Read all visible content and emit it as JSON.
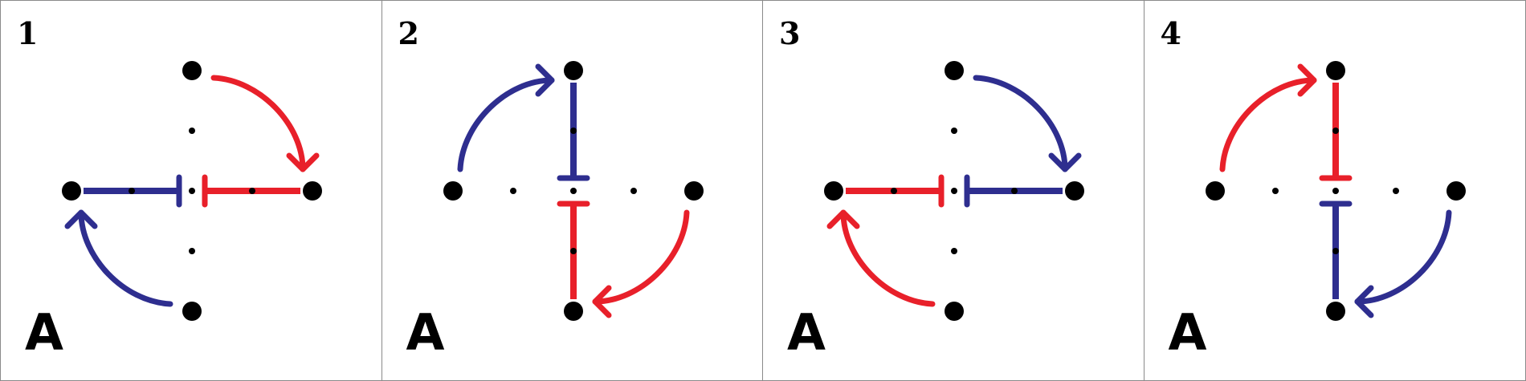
{
  "colors": {
    "blue": "#2e2e8f",
    "red": "#e8202a",
    "node": "#000000",
    "border": "#8a8a8a"
  },
  "panels": [
    {
      "number": "1",
      "letter": "A",
      "bars": [
        {
          "dir": "left",
          "color": "blue"
        },
        {
          "dir": "right",
          "color": "red"
        }
      ],
      "arrows": [
        {
          "quadrant": "top-right",
          "color": "red"
        },
        {
          "quadrant": "bottom-left",
          "color": "blue"
        }
      ]
    },
    {
      "number": "2",
      "letter": "A",
      "bars": [
        {
          "dir": "up",
          "color": "blue"
        },
        {
          "dir": "down",
          "color": "red"
        }
      ],
      "arrows": [
        {
          "quadrant": "top-left",
          "color": "blue"
        },
        {
          "quadrant": "bottom-right",
          "color": "red"
        }
      ]
    },
    {
      "number": "3",
      "letter": "A",
      "bars": [
        {
          "dir": "left",
          "color": "red"
        },
        {
          "dir": "right",
          "color": "blue"
        }
      ],
      "arrows": [
        {
          "quadrant": "top-right",
          "color": "blue"
        },
        {
          "quadrant": "bottom-left",
          "color": "red"
        }
      ]
    },
    {
      "number": "4",
      "letter": "A",
      "bars": [
        {
          "dir": "up",
          "color": "red"
        },
        {
          "dir": "down",
          "color": "blue"
        }
      ],
      "arrows": [
        {
          "quadrant": "top-left",
          "color": "red"
        },
        {
          "quadrant": "bottom-right",
          "color": "blue"
        }
      ]
    }
  ]
}
